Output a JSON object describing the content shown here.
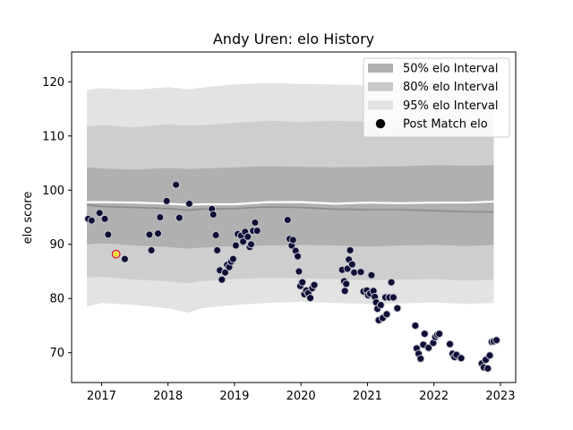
{
  "chart_data": {
    "type": "scatter",
    "title": "Andy Uren: elo History",
    "xlabel": "",
    "ylabel": "elo score",
    "xlim": [
      2016.55,
      2023.23
    ],
    "ylim": [
      64.5,
      125.5
    ],
    "x_ticks": [
      2017,
      2018,
      2019,
      2020,
      2021,
      2022,
      2023
    ],
    "x_tick_labels": [
      "2017",
      "2018",
      "2019",
      "2020",
      "2021",
      "2022",
      "2023"
    ],
    "y_ticks": [
      70,
      80,
      90,
      100,
      110,
      120
    ],
    "y_tick_labels": [
      "70",
      "80",
      "90",
      "100",
      "110",
      "120"
    ],
    "grid": false,
    "legend_position": "top-right",
    "legend": [
      {
        "label": "50% elo Interval",
        "kind": "patch",
        "color": "#b0b0b0"
      },
      {
        "label": "80% elo Interval",
        "kind": "patch",
        "color": "#c9c9c9"
      },
      {
        "label": "95% elo Interval",
        "kind": "patch",
        "color": "#e2e2e2"
      },
      {
        "label": "Post Match elo",
        "kind": "marker",
        "color": "#000000"
      }
    ],
    "colors": {
      "band50": "#b0b0b0",
      "band80": "#cecece",
      "band95": "#e3e3e3",
      "median_line": "#8a8a8a",
      "mean_line": "#ffffff",
      "point_fill": "#0d0d36",
      "point_edge": "#c8c8d2",
      "highlight_fill": "#e8e8e8",
      "highlight_edge": "#e02020"
    },
    "bands": {
      "x": [
        2016.78,
        2017.0,
        2017.5,
        2018.0,
        2018.3,
        2018.5,
        2019.0,
        2019.5,
        2020.0,
        2020.5,
        2021.0,
        2021.5,
        2022.0,
        2022.5,
        2022.9
      ],
      "p95_upper": [
        118.5,
        118.8,
        118.5,
        119.0,
        118.6,
        118.9,
        119.5,
        119.8,
        119.6,
        119.5,
        119.4,
        119.5,
        119.6,
        119.6,
        119.7
      ],
      "p80_upper": [
        111.8,
        112.0,
        111.6,
        112.2,
        111.9,
        112.0,
        112.4,
        112.8,
        112.6,
        112.8,
        112.6,
        112.9,
        113.1,
        113.0,
        113.1
      ],
      "p50_upper": [
        104.2,
        104.0,
        103.8,
        104.1,
        103.9,
        104.0,
        104.2,
        104.4,
        104.3,
        104.2,
        104.3,
        104.4,
        104.6,
        104.5,
        104.6
      ],
      "p50_lower": [
        90.0,
        90.2,
        89.8,
        89.5,
        89.2,
        89.4,
        89.7,
        89.8,
        89.9,
        89.8,
        89.6,
        89.8,
        89.9,
        89.7,
        89.9
      ],
      "p80_lower": [
        83.8,
        84.0,
        83.5,
        83.2,
        82.8,
        83.2,
        83.6,
        83.8,
        83.7,
        83.6,
        83.4,
        83.5,
        83.6,
        83.3,
        83.5
      ],
      "p95_lower": [
        78.5,
        79.2,
        78.8,
        78.2,
        77.4,
        78.2,
        78.8,
        79.2,
        79.4,
        79.2,
        79.0,
        79.1,
        79.3,
        79.0,
        79.2
      ],
      "median": [
        97.3,
        97.0,
        96.8,
        96.6,
        96.3,
        96.5,
        96.6,
        96.9,
        96.8,
        96.5,
        96.4,
        96.4,
        96.2,
        96.0,
        96.0
      ],
      "mean": [
        97.8,
        97.8,
        97.7,
        97.5,
        97.3,
        97.4,
        97.4,
        97.8,
        97.8,
        97.5,
        97.7,
        97.6,
        97.7,
        97.7,
        97.9
      ]
    },
    "points": [
      {
        "x": 2016.8,
        "y": 94.7
      },
      {
        "x": 2016.85,
        "y": 94.4
      },
      {
        "x": 2016.97,
        "y": 95.8
      },
      {
        "x": 2017.05,
        "y": 94.7
      },
      {
        "x": 2017.1,
        "y": 91.8
      },
      {
        "x": 2017.35,
        "y": 87.3
      },
      {
        "x": 2017.72,
        "y": 91.8
      },
      {
        "x": 2017.75,
        "y": 88.9
      },
      {
        "x": 2017.85,
        "y": 92.0
      },
      {
        "x": 2017.88,
        "y": 95.0
      },
      {
        "x": 2017.98,
        "y": 98.0
      },
      {
        "x": 2018.12,
        "y": 101.0
      },
      {
        "x": 2018.17,
        "y": 94.9
      },
      {
        "x": 2018.32,
        "y": 97.5
      },
      {
        "x": 2018.66,
        "y": 96.5
      },
      {
        "x": 2018.68,
        "y": 95.5
      },
      {
        "x": 2018.72,
        "y": 91.7
      },
      {
        "x": 2018.74,
        "y": 88.9
      },
      {
        "x": 2018.78,
        "y": 85.2
      },
      {
        "x": 2018.81,
        "y": 83.5
      },
      {
        "x": 2018.86,
        "y": 84.8
      },
      {
        "x": 2018.89,
        "y": 86.2
      },
      {
        "x": 2018.92,
        "y": 85.8
      },
      {
        "x": 2018.95,
        "y": 86.8
      },
      {
        "x": 2018.98,
        "y": 87.3
      },
      {
        "x": 2019.02,
        "y": 89.8
      },
      {
        "x": 2019.05,
        "y": 91.9
      },
      {
        "x": 2019.1,
        "y": 91.6
      },
      {
        "x": 2019.13,
        "y": 90.5
      },
      {
        "x": 2019.16,
        "y": 92.3
      },
      {
        "x": 2019.2,
        "y": 91.4
      },
      {
        "x": 2019.23,
        "y": 89.5
      },
      {
        "x": 2019.25,
        "y": 90.0
      },
      {
        "x": 2019.28,
        "y": 92.5
      },
      {
        "x": 2019.31,
        "y": 94.0
      },
      {
        "x": 2019.34,
        "y": 92.5
      },
      {
        "x": 2019.8,
        "y": 94.5
      },
      {
        "x": 2019.83,
        "y": 91.0
      },
      {
        "x": 2019.86,
        "y": 89.8
      },
      {
        "x": 2019.88,
        "y": 90.8
      },
      {
        "x": 2019.92,
        "y": 88.8
      },
      {
        "x": 2019.95,
        "y": 87.8
      },
      {
        "x": 2019.97,
        "y": 85.0
      },
      {
        "x": 2019.99,
        "y": 82.3
      },
      {
        "x": 2020.02,
        "y": 83.0
      },
      {
        "x": 2020.05,
        "y": 80.8
      },
      {
        "x": 2020.08,
        "y": 81.5
      },
      {
        "x": 2020.11,
        "y": 81.0
      },
      {
        "x": 2020.14,
        "y": 80.1
      },
      {
        "x": 2020.17,
        "y": 81.9
      },
      {
        "x": 2020.2,
        "y": 82.5
      },
      {
        "x": 2020.62,
        "y": 85.3
      },
      {
        "x": 2020.65,
        "y": 83.2
      },
      {
        "x": 2020.66,
        "y": 81.4
      },
      {
        "x": 2020.68,
        "y": 82.7
      },
      {
        "x": 2020.7,
        "y": 85.5
      },
      {
        "x": 2020.72,
        "y": 87.2
      },
      {
        "x": 2020.74,
        "y": 88.9
      },
      {
        "x": 2020.77,
        "y": 86.3
      },
      {
        "x": 2020.8,
        "y": 84.8
      },
      {
        "x": 2020.9,
        "y": 84.9
      },
      {
        "x": 2020.94,
        "y": 81.3
      },
      {
        "x": 2020.99,
        "y": 81.5
      },
      {
        "x": 2021.01,
        "y": 80.6
      },
      {
        "x": 2021.04,
        "y": 80.9
      },
      {
        "x": 2021.06,
        "y": 84.3
      },
      {
        "x": 2021.09,
        "y": 81.4
      },
      {
        "x": 2021.11,
        "y": 80.3
      },
      {
        "x": 2021.13,
        "y": 79.3
      },
      {
        "x": 2021.15,
        "y": 78.1
      },
      {
        "x": 2021.17,
        "y": 76.0
      },
      {
        "x": 2021.2,
        "y": 78.8
      },
      {
        "x": 2021.23,
        "y": 76.4
      },
      {
        "x": 2021.27,
        "y": 80.2
      },
      {
        "x": 2021.29,
        "y": 77.1
      },
      {
        "x": 2021.33,
        "y": 80.2
      },
      {
        "x": 2021.36,
        "y": 83.0
      },
      {
        "x": 2021.39,
        "y": 80.2
      },
      {
        "x": 2021.45,
        "y": 78.2
      },
      {
        "x": 2021.72,
        "y": 75.0
      },
      {
        "x": 2021.74,
        "y": 70.8
      },
      {
        "x": 2021.77,
        "y": 69.8
      },
      {
        "x": 2021.8,
        "y": 68.9
      },
      {
        "x": 2021.84,
        "y": 71.5
      },
      {
        "x": 2021.86,
        "y": 73.5
      },
      {
        "x": 2021.92,
        "y": 70.9
      },
      {
        "x": 2021.99,
        "y": 71.8
      },
      {
        "x": 2022.02,
        "y": 72.9
      },
      {
        "x": 2022.05,
        "y": 73.3
      },
      {
        "x": 2022.08,
        "y": 73.5
      },
      {
        "x": 2022.24,
        "y": 71.6
      },
      {
        "x": 2022.28,
        "y": 69.8
      },
      {
        "x": 2022.31,
        "y": 69.2
      },
      {
        "x": 2022.34,
        "y": 69.6
      },
      {
        "x": 2022.41,
        "y": 69.0
      },
      {
        "x": 2022.72,
        "y": 68.0
      },
      {
        "x": 2022.75,
        "y": 67.3
      },
      {
        "x": 2022.78,
        "y": 68.7
      },
      {
        "x": 2022.81,
        "y": 67.1
      },
      {
        "x": 2022.84,
        "y": 69.5
      },
      {
        "x": 2022.87,
        "y": 72.0
      },
      {
        "x": 2022.9,
        "y": 72.1
      },
      {
        "x": 2022.94,
        "y": 72.3
      }
    ],
    "highlight_point": {
      "x": 2017.22,
      "y": 88.2
    }
  }
}
